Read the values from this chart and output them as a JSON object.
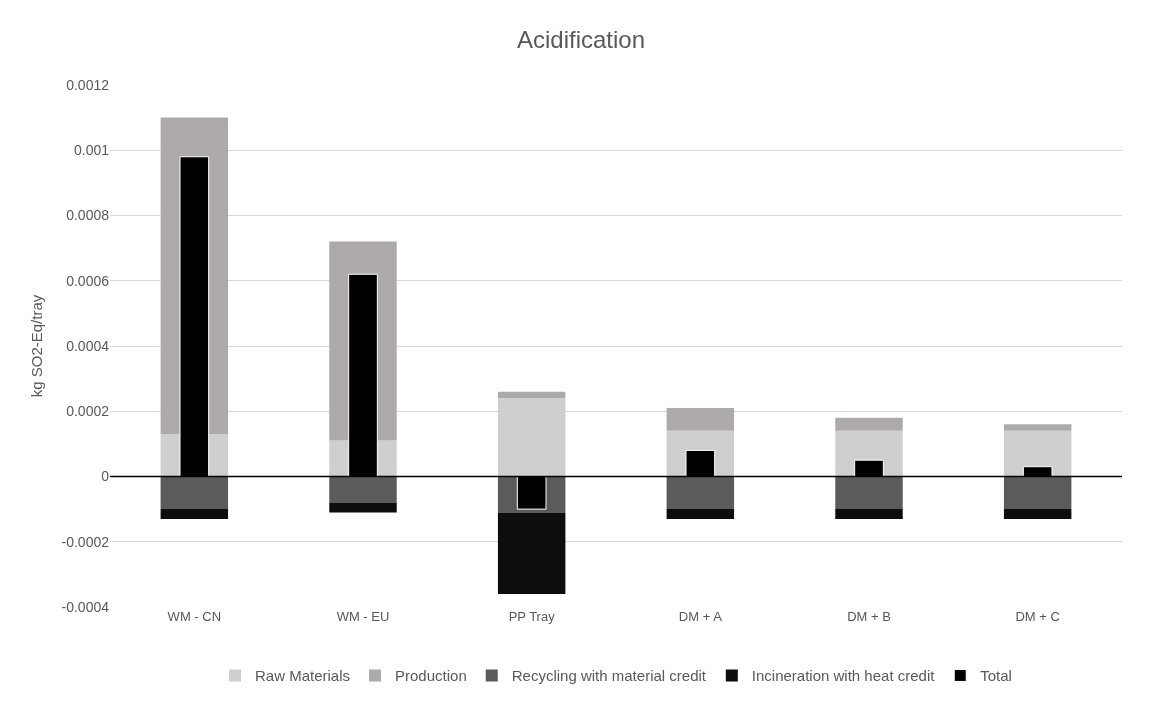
{
  "chart_data": {
    "type": "bar",
    "title": "Acidification",
    "ylabel": "kg SO2-Eq/tray",
    "categories": [
      "WM - CN",
      "WM - EU",
      "PP Tray",
      "DM + A",
      "DM + B",
      "DM + C"
    ],
    "series": [
      {
        "name": "Raw Materials",
        "color": "#d0cece",
        "base": [
          0,
          0,
          0,
          0,
          0,
          0
        ],
        "values": [
          0.00013,
          0.00011,
          0.00024,
          0.00014,
          0.00014,
          0.00014
        ]
      },
      {
        "name": "Production",
        "color": "#aeaaaa",
        "base": [
          0.00013,
          0.00011,
          0.00024,
          0.00014,
          0.00014,
          0.00014
        ],
        "values": [
          0.00097,
          0.00061,
          2e-05,
          7e-05,
          4e-05,
          2e-05
        ]
      },
      {
        "name": "Recycling with material credit",
        "color": "#5b5b5b",
        "base": [
          0,
          0,
          0,
          0,
          0,
          0
        ],
        "values": [
          -0.0001,
          -8e-05,
          -0.00011,
          -0.0001,
          -0.0001,
          -0.0001
        ]
      },
      {
        "name": "Incineration with heat credit",
        "color": "#0d0d0d",
        "base": [
          -0.0001,
          -8e-05,
          -0.00011,
          -0.0001,
          -0.0001,
          -0.0001
        ],
        "values": [
          -3e-05,
          -3e-05,
          -0.00025,
          -3e-05,
          -3e-05,
          -3e-05
        ]
      },
      {
        "name": "Total",
        "color": "#000000",
        "values": [
          0.00098,
          0.00062,
          -0.0001,
          8e-05,
          5e-05,
          3e-05
        ]
      }
    ],
    "ylim": [
      -0.0004,
      0.0012
    ],
    "yticks": [
      -0.0004,
      -0.0002,
      0,
      0.0002,
      0.0004,
      0.0006,
      0.0008,
      0.001,
      0.0012
    ],
    "ref_lines": [
      {
        "axis": "y",
        "value": 0,
        "color": "#000000"
      }
    ],
    "grid": "y",
    "legend": "bottom"
  }
}
